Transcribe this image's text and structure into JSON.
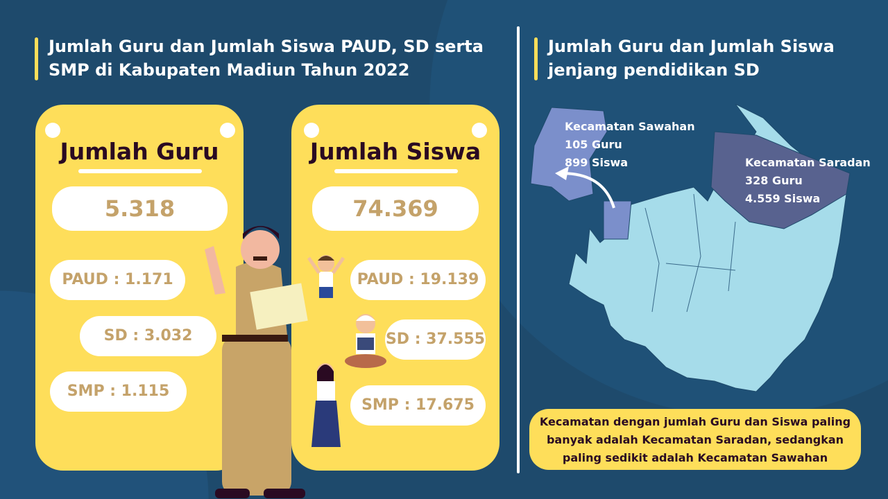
{
  "left_title": "Jumlah Guru dan Jumlah Siswa PAUD, SD serta SMP di Kabupaten Madiun Tahun 2022",
  "right_title": "Jumlah Guru dan Jumlah Siswa jenjang pendidikan SD",
  "guru": {
    "heading": "Jumlah Guru",
    "total": "5.318",
    "paud": "PAUD : 1.171",
    "sd": "SD : 3.032",
    "smp": "SMP : 1.115"
  },
  "siswa": {
    "heading": "Jumlah Siswa",
    "total": "74.369",
    "paud": "PAUD : 19.139",
    "sd": "SD : 37.555",
    "smp": "SMP : 17.675"
  },
  "map": {
    "sawahan": {
      "name": "Kecamatan Sawahan",
      "guru": "105 Guru",
      "siswa": "899 Siswa",
      "color": "#7b8fcb"
    },
    "saradan": {
      "name": "Kecamatan Saradan",
      "guru": "328 Guru",
      "siswa": "4.559 Siswa",
      "color": "#58628f"
    },
    "base_color": "#a6dcea"
  },
  "note": "Kecamatan dengan jumlah Guru dan Siswa paling banyak adalah Kecamatan Saradan, sedangkan paling sedikit adalah Kecamatan Sawahan",
  "colors": {
    "background": "#1e4a6c",
    "accent": "#fede5a",
    "value_text": "#c4a26a"
  }
}
